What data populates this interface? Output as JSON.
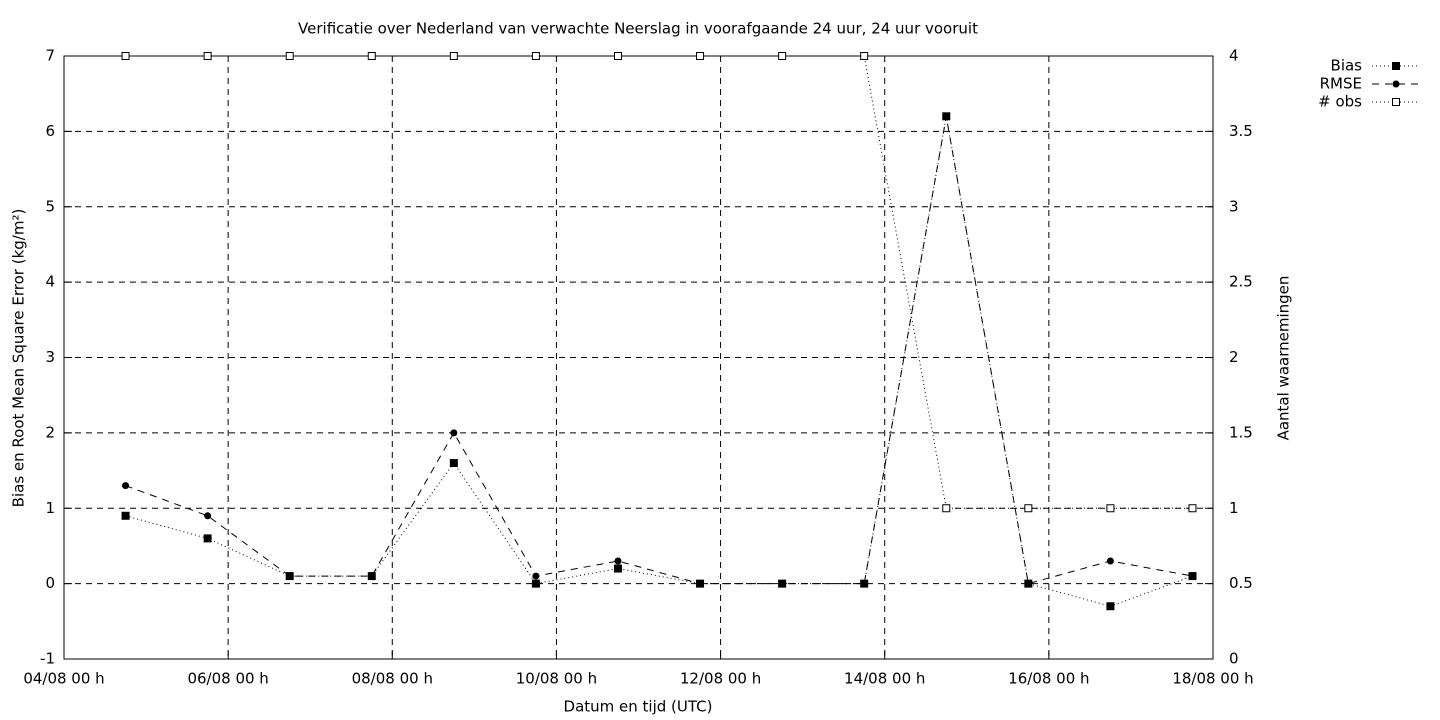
{
  "chart_data": {
    "type": "line",
    "title": "Verificatie over Nederland van verwachte Neerslag in voorafgaande 24 uur, 24 uur vooruit",
    "xlabel": "Datum en tijd (UTC)",
    "ylabel": "Bias en Root Mean Square Error (kg/m²)",
    "y2label": "Aantal waarnemingen",
    "x": [
      "04/08 18 h",
      "05/08 18 h",
      "06/08 18 h",
      "07/08 18 h",
      "08/08 18 h",
      "09/08 18 h",
      "10/08 18 h",
      "11/08 18 h",
      "12/08 18 h",
      "13/08 18 h",
      "14/08 18 h",
      "15/08 18 h",
      "16/08 18 h",
      "17/08 18 h"
    ],
    "xlim": [
      "04/08 00 h",
      "18/08 00 h"
    ],
    "xticks": [
      "04/08 00 h",
      "06/08 00 h",
      "08/08 00 h",
      "10/08 00 h",
      "12/08 00 h",
      "14/08 00 h",
      "16/08 00 h",
      "18/08 00 h"
    ],
    "ylim": [
      -1,
      7
    ],
    "yticks": [
      -1,
      0,
      1,
      2,
      3,
      4,
      5,
      6,
      7
    ],
    "y2lim": [
      0,
      4
    ],
    "y2ticks": [
      0,
      0.5,
      1,
      1.5,
      2,
      2.5,
      3,
      3.5,
      4
    ],
    "grid": true,
    "legend": "outside-top-right",
    "series": [
      {
        "name": "Bias",
        "color": "#000000",
        "dash": "dotted",
        "marker": "filled-square",
        "values": [
          0.9,
          0.6,
          0.1,
          0.1,
          1.6,
          0.0,
          0.2,
          0.0,
          0.0,
          0.0,
          6.2,
          0.0,
          -0.3,
          0.1
        ]
      },
      {
        "name": "RMSE",
        "color": "#000000",
        "dash": "dashed",
        "marker": "filled-circle",
        "values": [
          1.3,
          0.9,
          0.1,
          0.1,
          2.0,
          0.1,
          0.3,
          0.0,
          0.0,
          0.0,
          6.2,
          0.0,
          0.3,
          0.1
        ]
      },
      {
        "name": "# obs",
        "color": "#000000",
        "dash": "dotted",
        "marker": "open-square",
        "axis": "y2",
        "values": [
          4,
          4,
          4,
          4,
          4,
          4,
          4,
          4,
          4,
          4,
          1,
          1,
          1,
          1
        ]
      }
    ]
  }
}
